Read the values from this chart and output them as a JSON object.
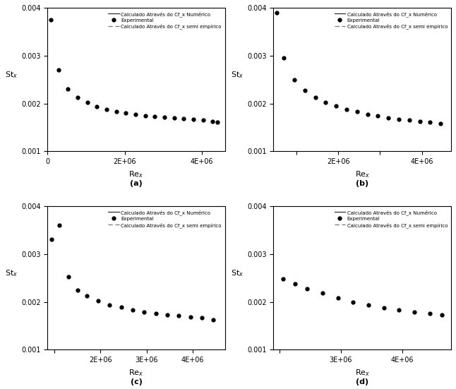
{
  "legend_labels": [
    "Calculado Através do Cf_x Numérico",
    "Experimental",
    "Calculado Através do Cf_x semi empírico"
  ],
  "subplots": [
    {
      "label": "(a)",
      "xlim": [
        0,
        4600000.0
      ],
      "xticks": [
        0,
        2000000,
        4000000
      ],
      "xticklabels": [
        "0",
        "2E+06",
        "4E+06"
      ],
      "ylim": [
        0.001,
        0.004
      ],
      "yticks": [
        0.001,
        0.002,
        0.003,
        0.004
      ],
      "curve_xstart": 30000,
      "curve_xend": 4500000,
      "A_num": 0.0115,
      "n_num": 0.38,
      "A_semi": 0.0135,
      "n_semi": 0.38,
      "x_exp": [
        80000,
        280000,
        530000,
        780000,
        1030000,
        1280000,
        1530000,
        1780000,
        2030000,
        2280000,
        2530000,
        2780000,
        3030000,
        3280000,
        3530000,
        3780000,
        4030000,
        4280000,
        4400000
      ],
      "y_exp": [
        0.00375,
        0.0027,
        0.0023,
        0.00213,
        0.00202,
        0.00193,
        0.00188,
        0.00183,
        0.0018,
        0.00177,
        0.00175,
        0.00173,
        0.00171,
        0.0017,
        0.00168,
        0.00167,
        0.00165,
        0.00163,
        0.00161
      ]
    },
    {
      "label": "(b)",
      "xlim": [
        450000.0,
        4700000.0
      ],
      "xticks": [
        1000000,
        2000000,
        3000000,
        4000000
      ],
      "xticklabels": [
        "",
        "2E+06",
        "",
        "4E+06"
      ],
      "ylim": [
        0.001,
        0.004
      ],
      "yticks": [
        0.001,
        0.002,
        0.003,
        0.004
      ],
      "curve_xstart": 480000,
      "curve_xend": 4600000,
      "A_num": 0.0115,
      "n_num": 0.38,
      "A_semi": 0.0135,
      "n_semi": 0.38,
      "x_exp": [
        530000,
        700000,
        950000,
        1200000,
        1450000,
        1700000,
        1950000,
        2200000,
        2450000,
        2700000,
        2950000,
        3200000,
        3450000,
        3700000,
        3950000,
        4200000,
        4450000
      ],
      "y_exp": [
        0.0039,
        0.00295,
        0.0025,
        0.00228,
        0.00212,
        0.00203,
        0.00195,
        0.00188,
        0.00183,
        0.00178,
        0.00174,
        0.0017,
        0.00167,
        0.00165,
        0.00163,
        0.00161,
        0.00158
      ]
    },
    {
      "label": "(c)",
      "xlim": [
        850000.0,
        4700000.0
      ],
      "xticks": [
        1000000,
        2000000,
        3000000,
        4000000
      ],
      "xticklabels": [
        "",
        "2E+06",
        "3E+06",
        "4E+06"
      ],
      "ylim": [
        0.001,
        0.004
      ],
      "yticks": [
        0.001,
        0.002,
        0.003,
        0.004
      ],
      "curve_xstart": 890000,
      "curve_xend": 4600000,
      "A_num": 0.0115,
      "n_num": 0.38,
      "A_semi": 0.0128,
      "n_semi": 0.38,
      "x_exp": [
        940000,
        1100000,
        1300000,
        1500000,
        1700000,
        1950000,
        2200000,
        2450000,
        2700000,
        2950000,
        3200000,
        3450000,
        3700000,
        3950000,
        4200000,
        4450000
      ],
      "y_exp": [
        0.0033,
        0.0036,
        0.00253,
        0.00225,
        0.00213,
        0.00202,
        0.00194,
        0.00189,
        0.00183,
        0.00179,
        0.00176,
        0.00173,
        0.00171,
        0.00169,
        0.00167,
        0.00163
      ]
    },
    {
      "label": "(d)",
      "xlim": [
        1900000.0,
        4800000.0
      ],
      "xticks": [
        2000000,
        3000000,
        4000000
      ],
      "xticklabels": [
        "",
        "3E+06",
        "4E+06"
      ],
      "ylim": [
        0.001,
        0.004
      ],
      "yticks": [
        0.001,
        0.002,
        0.003,
        0.004
      ],
      "curve_xstart": 2000000,
      "curve_xend": 4700000,
      "A_num": 0.0115,
      "n_num": 0.38,
      "A_semi": 0.013,
      "n_semi": 0.38,
      "x_exp": [
        2050000,
        2250000,
        2450000,
        2700000,
        2950000,
        3200000,
        3450000,
        3700000,
        3950000,
        4200000,
        4450000,
        4650000
      ],
      "y_exp": [
        0.00248,
        0.00238,
        0.00228,
        0.00218,
        0.00208,
        0.002,
        0.00194,
        0.00188,
        0.00183,
        0.00179,
        0.00176,
        0.00173
      ]
    }
  ]
}
